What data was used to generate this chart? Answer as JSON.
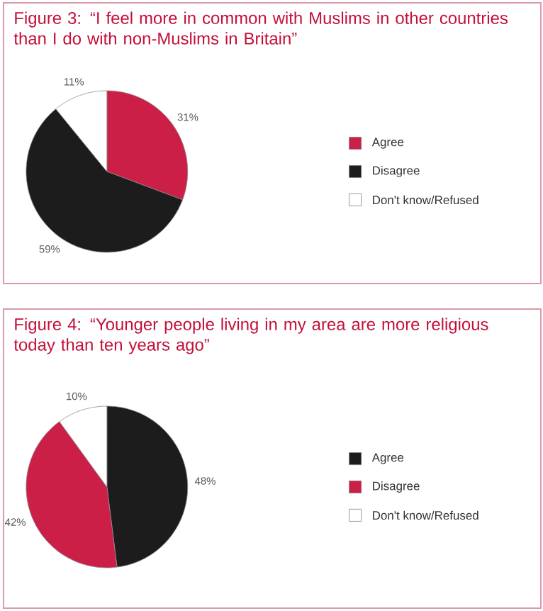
{
  "chart_data": [
    {
      "type": "pie",
      "title": "Figure 3: “I feel more in common with Muslims in other countries than I do with non-Muslims in Britain”",
      "categories": [
        "Agree",
        "Disagree",
        "Don't know/Refused"
      ],
      "values": [
        31,
        59,
        11
      ],
      "colors": [
        "#cc1f48",
        "#1c1c1c",
        "#ffffff"
      ],
      "data_labels": true,
      "value_labels": [
        "31%",
        "59%",
        "11%"
      ],
      "legend": "right"
    },
    {
      "type": "pie",
      "title": "Figure 4: “Younger people living in my area are more religious today than ten years ago”",
      "categories": [
        "Agree",
        "Disagree",
        "Don't know/Refused"
      ],
      "values": [
        48,
        42,
        10
      ],
      "colors": [
        "#1c1c1c",
        "#cc1f48",
        "#ffffff"
      ],
      "data_labels": true,
      "value_labels": [
        "48%",
        "42%",
        "10%"
      ],
      "legend": "right"
    }
  ]
}
